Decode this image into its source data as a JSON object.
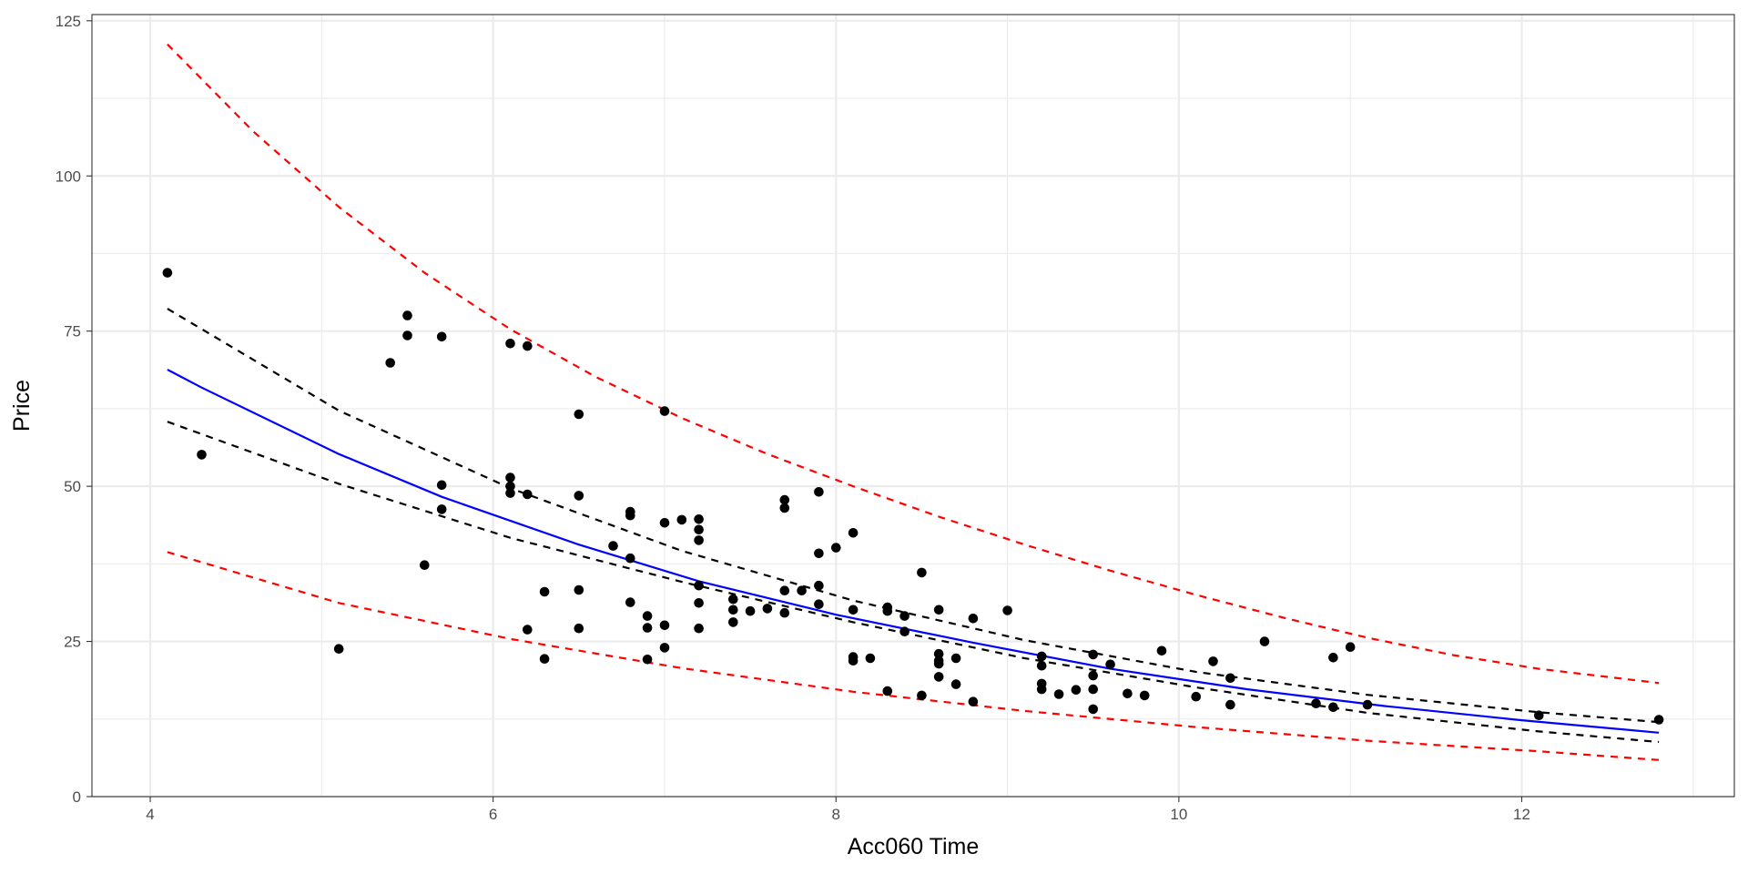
{
  "chart_data": {
    "type": "scatter",
    "title": "",
    "xlabel": "Acc060 Time",
    "ylabel": "Price",
    "xlim": [
      3.66,
      13.24
    ],
    "ylim": [
      0,
      126
    ],
    "x_ticks": [
      4,
      6,
      8,
      10,
      12
    ],
    "x_tick_labels": [
      "4",
      "6",
      "8",
      "10",
      "12"
    ],
    "x_minor_ticks": [
      5,
      7,
      9,
      11,
      13
    ],
    "y_ticks": [
      0,
      25,
      50,
      75,
      100,
      125
    ],
    "y_tick_labels": [
      "0",
      "25",
      "50",
      "75",
      "100",
      "125"
    ],
    "y_minor_ticks": [
      12.5,
      37.5,
      62.5,
      87.5,
      112.5
    ],
    "grid": true,
    "legend": "none",
    "colors": {
      "points": "#000000",
      "fit": "#0000ff",
      "confidence": "#000000",
      "prediction": "#ff0000",
      "grid": "#ebebeb",
      "panel_border": "#333333"
    },
    "points": [
      {
        "x": 4.1,
        "y": 84.4
      },
      {
        "x": 4.3,
        "y": 55.1
      },
      {
        "x": 5.1,
        "y": 23.8
      },
      {
        "x": 5.4,
        "y": 69.9
      },
      {
        "x": 5.5,
        "y": 77.5
      },
      {
        "x": 5.5,
        "y": 74.3
      },
      {
        "x": 5.6,
        "y": 37.3
      },
      {
        "x": 5.7,
        "y": 74.1
      },
      {
        "x": 5.7,
        "y": 50.2
      },
      {
        "x": 5.7,
        "y": 46.3
      },
      {
        "x": 6.1,
        "y": 73.0
      },
      {
        "x": 6.1,
        "y": 51.4
      },
      {
        "x": 6.1,
        "y": 50.0
      },
      {
        "x": 6.1,
        "y": 48.9
      },
      {
        "x": 6.2,
        "y": 72.6
      },
      {
        "x": 6.2,
        "y": 48.7
      },
      {
        "x": 6.2,
        "y": 26.9
      },
      {
        "x": 6.3,
        "y": 33.0
      },
      {
        "x": 6.3,
        "y": 22.2
      },
      {
        "x": 6.5,
        "y": 61.6
      },
      {
        "x": 6.5,
        "y": 48.5
      },
      {
        "x": 6.5,
        "y": 33.3
      },
      {
        "x": 6.5,
        "y": 27.1
      },
      {
        "x": 6.7,
        "y": 40.4
      },
      {
        "x": 6.8,
        "y": 45.9
      },
      {
        "x": 6.8,
        "y": 45.3
      },
      {
        "x": 6.8,
        "y": 38.4
      },
      {
        "x": 6.8,
        "y": 31.3
      },
      {
        "x": 6.9,
        "y": 29.1
      },
      {
        "x": 6.9,
        "y": 27.2
      },
      {
        "x": 6.9,
        "y": 22.1
      },
      {
        "x": 7.0,
        "y": 62.1
      },
      {
        "x": 7.0,
        "y": 44.1
      },
      {
        "x": 7.0,
        "y": 27.6
      },
      {
        "x": 7.0,
        "y": 24.0
      },
      {
        "x": 7.1,
        "y": 44.6
      },
      {
        "x": 7.2,
        "y": 44.7
      },
      {
        "x": 7.2,
        "y": 43.0
      },
      {
        "x": 7.2,
        "y": 41.3
      },
      {
        "x": 7.2,
        "y": 34.0
      },
      {
        "x": 7.2,
        "y": 31.2
      },
      {
        "x": 7.2,
        "y": 27.1
      },
      {
        "x": 7.4,
        "y": 31.8
      },
      {
        "x": 7.4,
        "y": 30.1
      },
      {
        "x": 7.4,
        "y": 28.1
      },
      {
        "x": 7.5,
        "y": 29.9
      },
      {
        "x": 7.6,
        "y": 30.3
      },
      {
        "x": 7.7,
        "y": 47.8
      },
      {
        "x": 7.7,
        "y": 46.5
      },
      {
        "x": 7.7,
        "y": 33.2
      },
      {
        "x": 7.7,
        "y": 29.6
      },
      {
        "x": 7.8,
        "y": 33.2
      },
      {
        "x": 7.9,
        "y": 49.1
      },
      {
        "x": 7.9,
        "y": 39.2
      },
      {
        "x": 7.9,
        "y": 34.0
      },
      {
        "x": 7.9,
        "y": 31.0
      },
      {
        "x": 8.0,
        "y": 40.1
      },
      {
        "x": 8.1,
        "y": 42.5
      },
      {
        "x": 8.1,
        "y": 30.1
      },
      {
        "x": 8.1,
        "y": 22.5
      },
      {
        "x": 8.1,
        "y": 21.9
      },
      {
        "x": 8.2,
        "y": 22.3
      },
      {
        "x": 8.3,
        "y": 30.5
      },
      {
        "x": 8.3,
        "y": 29.9
      },
      {
        "x": 8.3,
        "y": 17.0
      },
      {
        "x": 8.4,
        "y": 29.1
      },
      {
        "x": 8.4,
        "y": 26.6
      },
      {
        "x": 8.5,
        "y": 36.1
      },
      {
        "x": 8.5,
        "y": 16.3
      },
      {
        "x": 8.6,
        "y": 30.1
      },
      {
        "x": 8.6,
        "y": 23.0
      },
      {
        "x": 8.6,
        "y": 21.9
      },
      {
        "x": 8.6,
        "y": 21.4
      },
      {
        "x": 8.6,
        "y": 19.3
      },
      {
        "x": 8.7,
        "y": 22.3
      },
      {
        "x": 8.7,
        "y": 18.1
      },
      {
        "x": 8.8,
        "y": 28.7
      },
      {
        "x": 8.8,
        "y": 15.3
      },
      {
        "x": 9.0,
        "y": 30.0
      },
      {
        "x": 9.2,
        "y": 22.6
      },
      {
        "x": 9.2,
        "y": 21.1
      },
      {
        "x": 9.2,
        "y": 18.2
      },
      {
        "x": 9.2,
        "y": 17.3
      },
      {
        "x": 9.3,
        "y": 16.5
      },
      {
        "x": 9.4,
        "y": 17.2
      },
      {
        "x": 9.5,
        "y": 22.9
      },
      {
        "x": 9.5,
        "y": 19.5
      },
      {
        "x": 9.5,
        "y": 17.3
      },
      {
        "x": 9.5,
        "y": 14.1
      },
      {
        "x": 9.6,
        "y": 21.3
      },
      {
        "x": 9.7,
        "y": 16.6
      },
      {
        "x": 9.8,
        "y": 16.3
      },
      {
        "x": 9.9,
        "y": 23.5
      },
      {
        "x": 10.1,
        "y": 16.1
      },
      {
        "x": 10.2,
        "y": 21.8
      },
      {
        "x": 10.3,
        "y": 19.1
      },
      {
        "x": 10.3,
        "y": 14.8
      },
      {
        "x": 10.5,
        "y": 25.0
      },
      {
        "x": 10.8,
        "y": 15.0
      },
      {
        "x": 10.9,
        "y": 22.4
      },
      {
        "x": 10.9,
        "y": 14.4
      },
      {
        "x": 11.0,
        "y": 24.1
      },
      {
        "x": 11.1,
        "y": 14.8
      },
      {
        "x": 12.1,
        "y": 13.1
      },
      {
        "x": 12.8,
        "y": 12.4
      }
    ],
    "lines": [
      {
        "role": "fit",
        "style": "solid",
        "x": [
          4.1,
          4.3,
          5.1,
          5.7,
          6.5,
          7.2,
          8.0,
          8.8,
          9.6,
          10.4,
          11.2,
          12.0,
          12.8
        ],
        "y": [
          68.8,
          65.9,
          55.2,
          48.3,
          40.6,
          34.7,
          29.3,
          24.8,
          20.6,
          17.3,
          14.6,
          12.3,
          10.3
        ]
      },
      {
        "role": "confidence-upper",
        "style": "dashed",
        "x": [
          4.1,
          5.1,
          6.1,
          7.1,
          8.1,
          9.1,
          10.1,
          11.1,
          12.1,
          12.8
        ],
        "y": [
          78.6,
          62.2,
          49.7,
          39.6,
          31.6,
          25.2,
          20.1,
          16.4,
          13.6,
          12.0
        ]
      },
      {
        "role": "confidence-lower",
        "style": "dashed",
        "x": [
          4.1,
          5.1,
          6.1,
          7.1,
          8.1,
          9.1,
          10.1,
          11.1,
          12.1,
          12.8
        ],
        "y": [
          60.4,
          50.4,
          41.7,
          34.6,
          28.1,
          22.3,
          17.6,
          13.5,
          10.5,
          8.8
        ]
      },
      {
        "role": "prediction-upper",
        "style": "dashed",
        "x": [
          4.1,
          4.6,
          5.1,
          5.6,
          6.1,
          6.6,
          7.1,
          7.6,
          8.1,
          8.6,
          9.1,
          9.6,
          10.1,
          10.6,
          11.1,
          11.6,
          12.1,
          12.8
        ],
        "y": [
          121.2,
          107.2,
          95.0,
          84.4,
          75.3,
          67.6,
          61.0,
          55.2,
          50.0,
          45.1,
          40.6,
          36.4,
          32.5,
          28.9,
          25.6,
          22.8,
          20.6,
          18.3
        ]
      },
      {
        "role": "prediction-lower",
        "style": "dashed",
        "x": [
          4.1,
          5.1,
          6.1,
          7.1,
          8.1,
          9.1,
          10.1,
          11.1,
          12.1,
          12.8
        ],
        "y": [
          39.4,
          31.2,
          25.4,
          20.7,
          16.9,
          13.8,
          11.2,
          9.0,
          7.3,
          5.9
        ]
      }
    ]
  }
}
